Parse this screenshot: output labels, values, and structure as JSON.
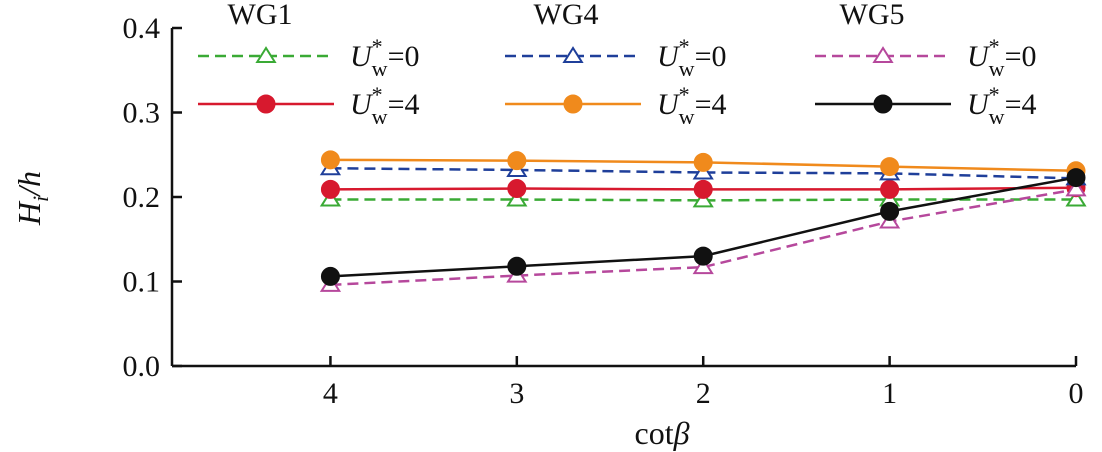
{
  "chart_data": {
    "type": "line",
    "xlabel": {
      "main": "cot",
      "symbol": "β"
    },
    "ylabel": {
      "main": "H",
      "sub": "i",
      "rest": "/h"
    },
    "x": [
      4,
      3,
      2,
      1,
      0
    ],
    "x_tick_labels": [
      "4",
      "3",
      "2",
      "1",
      "0"
    ],
    "x_reversed": true,
    "xlim": [
      4.85,
      0
    ],
    "ylim": [
      0.0,
      0.4
    ],
    "y_ticks": [
      0.0,
      0.1,
      0.2,
      0.3,
      0.4
    ],
    "y_tick_labels": [
      "0.0",
      "0.1",
      "0.2",
      "0.3",
      "0.4"
    ],
    "grid": false,
    "legend_position": "top",
    "legend_groups": [
      "WG1",
      "WG4",
      "WG5"
    ],
    "series": [
      {
        "group": "WG1",
        "label": {
          "u": "U",
          "sub": "w",
          "sup": "*",
          "eq": "=0"
        },
        "color": "#3aaa35",
        "dash": "dashed",
        "marker": "triangle-open",
        "values": [
          0.197,
          0.197,
          0.196,
          0.197,
          0.197
        ]
      },
      {
        "group": "WG1",
        "label": {
          "u": "U",
          "sub": "w",
          "sup": "*",
          "eq": "=4"
        },
        "color": "#d7192e",
        "dash": "solid",
        "marker": "circle-filled",
        "values": [
          0.209,
          0.21,
          0.209,
          0.209,
          0.211
        ]
      },
      {
        "group": "WG4",
        "label": {
          "u": "U",
          "sub": "w",
          "sup": "*",
          "eq": "=0"
        },
        "color": "#1f3f9a",
        "dash": "dashed",
        "marker": "triangle-open",
        "values": [
          0.234,
          0.232,
          0.229,
          0.228,
          0.222
        ]
      },
      {
        "group": "WG4",
        "label": {
          "u": "U",
          "sub": "w",
          "sup": "*",
          "eq": "=4"
        },
        "color": "#f08a1c",
        "dash": "solid",
        "marker": "circle-filled",
        "values": [
          0.244,
          0.243,
          0.241,
          0.236,
          0.231
        ]
      },
      {
        "group": "WG5",
        "label": {
          "u": "U",
          "sub": "w",
          "sup": "*",
          "eq": "=0"
        },
        "color": "#b6489c",
        "dash": "dashed",
        "marker": "triangle-open",
        "values": [
          0.096,
          0.107,
          0.117,
          0.171,
          0.209
        ]
      },
      {
        "group": "WG5",
        "label": {
          "u": "U",
          "sub": "w",
          "sup": "*",
          "eq": "=4"
        },
        "color": "#111111",
        "dash": "solid",
        "marker": "circle-filled",
        "values": [
          0.106,
          0.118,
          0.13,
          0.183,
          0.223
        ]
      }
    ]
  }
}
